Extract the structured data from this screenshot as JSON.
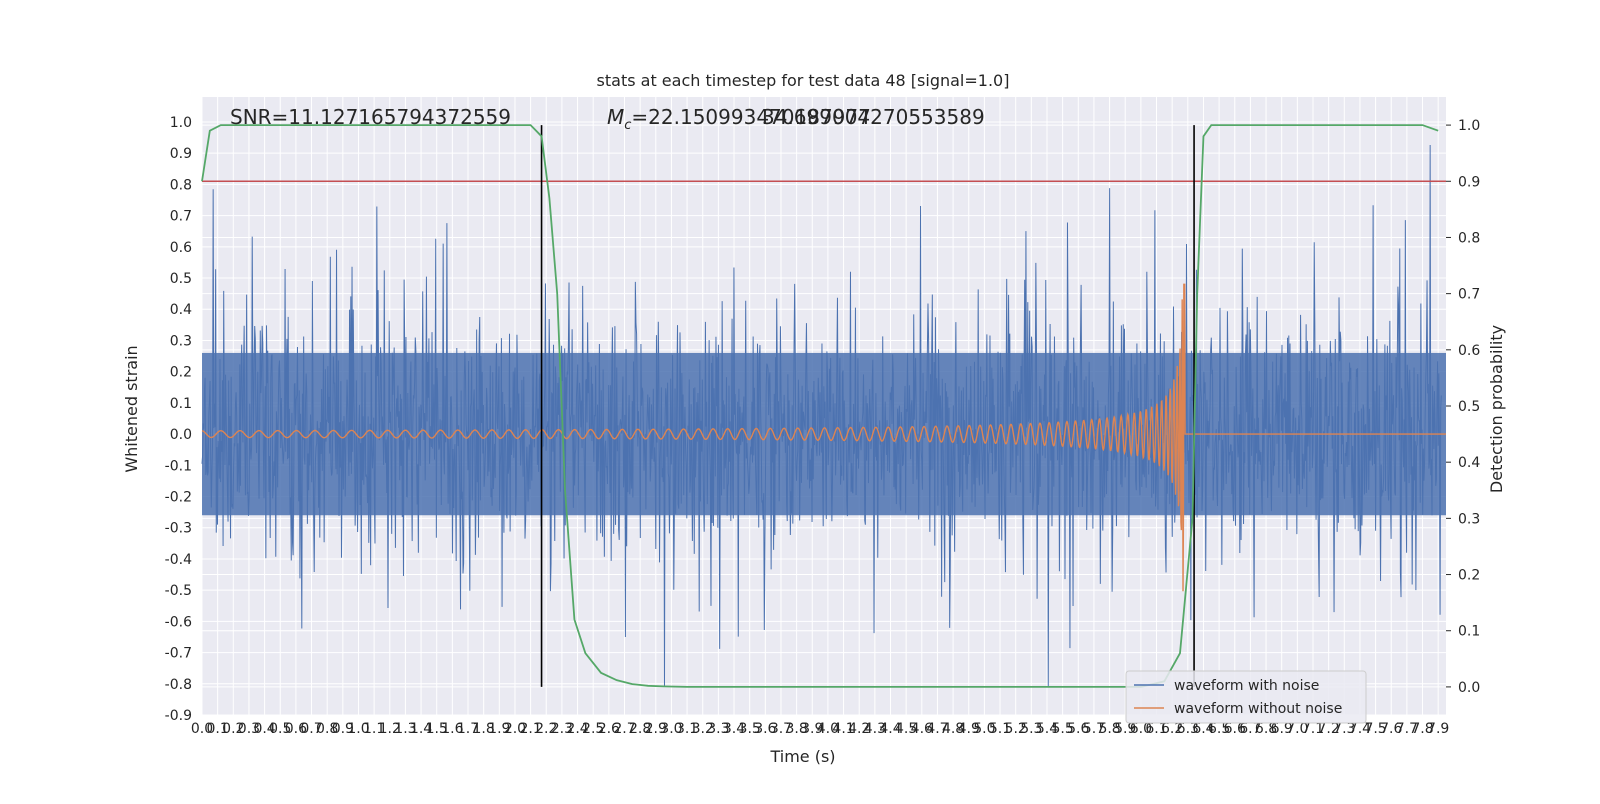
{
  "chart_data": {
    "type": "line",
    "title": "stats at each timestep for test data 48 [signal=1.0]",
    "xlabel": "Time (s)",
    "ylabel": "Whitened strain",
    "y2label": "Detection probability",
    "xlim": [
      0.0,
      7.95
    ],
    "ylim": [
      -0.9,
      1.08
    ],
    "y2lim": [
      -0.05,
      1.05
    ],
    "grid": true,
    "legend_position": "lower-right",
    "x_ticks": [
      "0.0",
      "0.1",
      "0.2",
      "0.3",
      "0.4",
      "0.5",
      "0.6",
      "0.7",
      "0.8",
      "0.9",
      "1.0",
      "1.1",
      "1.2",
      "1.3",
      "1.4",
      "1.5",
      "1.6",
      "1.7",
      "1.8",
      "1.9",
      "2.0",
      "2.1",
      "2.2",
      "2.3",
      "2.4",
      "2.5",
      "2.6",
      "2.7",
      "2.8",
      "2.9",
      "3.0",
      "3.1",
      "3.2",
      "3.3",
      "3.4",
      "3.5",
      "3.6",
      "3.7",
      "3.8",
      "3.9",
      "4.0",
      "4.1",
      "4.2",
      "4.3",
      "4.4",
      "4.5",
      "4.6",
      "4.7",
      "4.8",
      "4.9",
      "5.0",
      "5.1",
      "5.2",
      "5.3",
      "5.4",
      "5.5",
      "5.6",
      "5.7",
      "5.8",
      "5.9",
      "6.0",
      "6.1",
      "6.2",
      "6.3",
      "6.4",
      "6.5",
      "6.6",
      "6.7",
      "6.8",
      "6.9",
      "7.0",
      "7.1",
      "7.2",
      "7.3",
      "7.4",
      "7.5",
      "7.6",
      "7.7",
      "7.8",
      "7.9"
    ],
    "y_ticks": [
      "-0.9",
      "-0.8",
      "-0.7",
      "-0.6",
      "-0.5",
      "-0.4",
      "-0.3",
      "-0.2",
      "-0.1",
      "0.0",
      "0.1",
      "0.2",
      "0.3",
      "0.4",
      "0.5",
      "0.6",
      "0.7",
      "0.8",
      "0.9",
      "1.0"
    ],
    "y2_ticks": [
      "0.0",
      "0.1",
      "0.2",
      "0.3",
      "0.4",
      "0.5",
      "0.6",
      "0.7",
      "0.8",
      "0.9",
      "1.0"
    ],
    "annotations": {
      "snr": "SNR=11.127165794372559",
      "mc": "M_c=22.150993470187977",
      "overlap": "34.699004270553589"
    },
    "vlines_x": [
      2.17,
      6.34
    ],
    "threshold_y2": 0.9,
    "series": [
      {
        "name": "waveform with noise",
        "color": "#4c72b0",
        "type": "noise",
        "peak_max": 1.0,
        "peak_min": -0.81,
        "band": 0.26
      },
      {
        "name": "waveform without noise",
        "color": "#dd8452",
        "type": "chirp",
        "merger_time": 6.28,
        "peak_max": 0.48,
        "peak_min": -0.53
      },
      {
        "name": "",
        "color": "#55a868",
        "type": "probability",
        "axis": "y2",
        "x": [
          0.0,
          0.05,
          0.12,
          0.5,
          1.0,
          1.5,
          2.0,
          2.1,
          2.17,
          2.22,
          2.27,
          2.32,
          2.38,
          2.45,
          2.55,
          2.65,
          2.75,
          2.85,
          2.95,
          3.1,
          3.5,
          4.0,
          5.0,
          6.0,
          6.15,
          6.25,
          6.33,
          6.36,
          6.4,
          6.45,
          6.55,
          7.0,
          7.5,
          7.8,
          7.9
        ],
        "y": [
          0.9,
          0.99,
          1.0,
          1.0,
          1.0,
          1.0,
          1.0,
          1.0,
          0.98,
          0.87,
          0.7,
          0.35,
          0.12,
          0.06,
          0.025,
          0.012,
          0.005,
          0.002,
          0.001,
          0.0,
          0.0,
          0.0,
          0.0,
          0.0,
          0.01,
          0.06,
          0.3,
          0.7,
          0.98,
          1.0,
          1.0,
          1.0,
          1.0,
          1.0,
          0.99
        ]
      }
    ],
    "colors": {
      "threshold": "#c44e52",
      "vline": "#000000",
      "background": "#eaeaf2",
      "grid": "#ffffff"
    }
  }
}
